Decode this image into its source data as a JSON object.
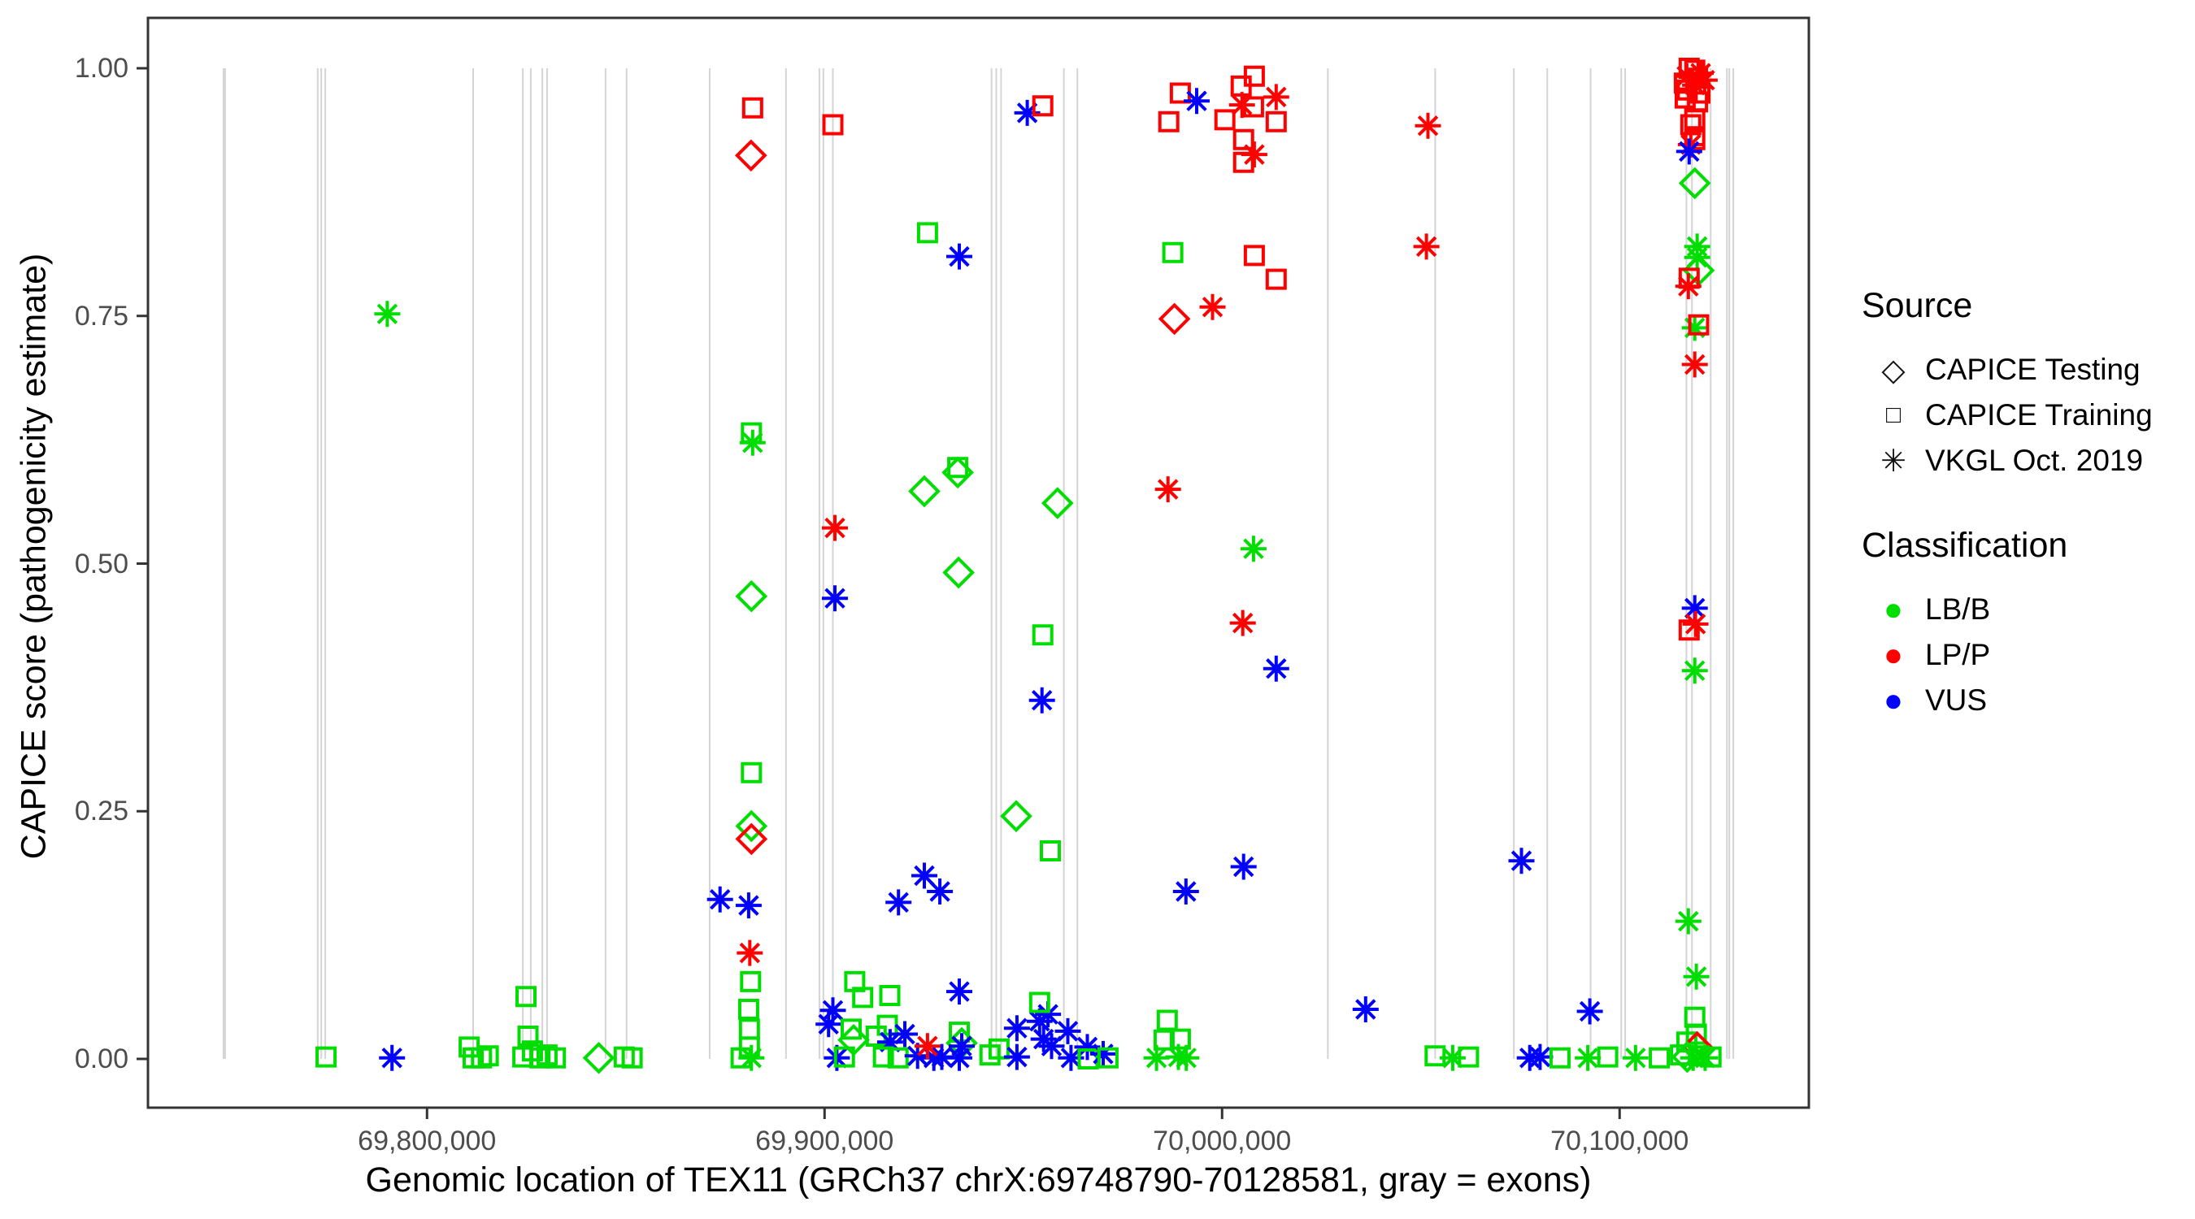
{
  "chart_data": {
    "type": "scatter",
    "title": "",
    "xlabel": "Genomic location of TEX11 (GRCh37 chrX:69748790-70128581, gray = exons)",
    "ylabel": "CAPICE score (pathogenicity estimate)",
    "x_range": [
      69729800,
      70147600
    ],
    "y_range": [
      0.0,
      1.0
    ],
    "grid": "off",
    "legend_position": "right",
    "x_ticks": [
      {
        "value": 69800000,
        "label": "69,800,000"
      },
      {
        "value": 69900000,
        "label": "69,900,000"
      },
      {
        "value": 70000000,
        "label": "70,000,000"
      },
      {
        "value": 70100000,
        "label": "70,100,000"
      }
    ],
    "y_ticks": [
      {
        "value": 1.0,
        "label": "1.00"
      },
      {
        "value": 0.75,
        "label": "0.75"
      },
      {
        "value": 0.5,
        "label": "0.50"
      },
      {
        "value": 0.25,
        "label": "0.25"
      },
      {
        "value": 0.0,
        "label": "0.00"
      }
    ],
    "legend": {
      "source_title": "Source",
      "source_items": [
        {
          "label": "CAPICE Testing",
          "marker": "diamond"
        },
        {
          "label": "CAPICE Training",
          "marker": "square"
        },
        {
          "label": "VKGL Oct. 2019",
          "marker": "asterisk"
        }
      ],
      "classification_title": "Classification",
      "classification_items": [
        {
          "label": "LB/B",
          "color": "#00DD00"
        },
        {
          "label": "LP/P",
          "color": "#FF0000"
        },
        {
          "label": "VUS",
          "color": "#0000FF"
        }
      ]
    },
    "colors": {
      "g": "#00DD00",
      "r": "#FF0000",
      "b": "#0000FF"
    },
    "shape_meaning": {
      "d": "CAPICE Testing (diamond)",
      "s": "CAPICE Training (square)",
      "a": "VKGL Oct. 2019 (asterisk)"
    },
    "exons_note": "gray vertical lines = exons (genomic positions)",
    "exons": [
      69748800,
      69749200,
      69772500,
      69773400,
      69774400,
      69811600,
      69824100,
      69826100,
      69829000,
      69830200,
      69844900,
      69850200,
      69871100,
      69890300,
      69898700,
      69899700,
      69902100,
      69942000,
      69943200,
      69944400,
      69960200,
      69963600,
      70026600,
      70053600,
      70073400,
      70081800,
      70092700,
      70100400,
      70101400,
      70116800,
      70118200,
      70122900,
      70127000,
      70127600,
      70128600
    ],
    "points_format": [
      "genomic_position",
      "capice_score",
      "shape(d=diamond,s=square,a=asterisk)",
      "class(g=LB/B,r=LP/P,b=VUS)"
    ],
    "points": [
      [
        69774600,
        0.002,
        "s",
        "g"
      ],
      [
        69790000,
        0.752,
        "a",
        "g"
      ],
      [
        69791200,
        0.001,
        "a",
        "b"
      ],
      [
        69810600,
        0.012,
        "s",
        "g"
      ],
      [
        69811600,
        0.001,
        "s",
        "g"
      ],
      [
        69813700,
        0.001,
        "s",
        "g"
      ],
      [
        69815400,
        0.003,
        "s",
        "g"
      ],
      [
        69824900,
        0.063,
        "s",
        "g"
      ],
      [
        69825400,
        0.023,
        "s",
        "g"
      ],
      [
        69824100,
        0.002,
        "s",
        "g"
      ],
      [
        69826500,
        0.008,
        "s",
        "g"
      ],
      [
        69828400,
        0.001,
        "s",
        "g"
      ],
      [
        69830200,
        0.004,
        "s",
        "g"
      ],
      [
        69832300,
        0.001,
        "s",
        "g"
      ],
      [
        69843200,
        0.001,
        "d",
        "g"
      ],
      [
        69849600,
        0.002,
        "s",
        "g"
      ],
      [
        69851600,
        0.001,
        "s",
        "g"
      ],
      [
        69873700,
        0.161,
        "a",
        "b"
      ],
      [
        69880900,
        0.155,
        "a",
        "b"
      ],
      [
        69881900,
        0.96,
        "s",
        "r"
      ],
      [
        69881500,
        0.912,
        "d",
        "r"
      ],
      [
        69881600,
        0.632,
        "s",
        "g"
      ],
      [
        69881900,
        0.622,
        "a",
        "g"
      ],
      [
        69881600,
        0.467,
        "d",
        "g"
      ],
      [
        69881600,
        0.289,
        "s",
        "g"
      ],
      [
        69881600,
        0.235,
        "d",
        "g"
      ],
      [
        69881600,
        0.222,
        "d",
        "r"
      ],
      [
        69881200,
        0.107,
        "a",
        "r"
      ],
      [
        69881400,
        0.078,
        "s",
        "g"
      ],
      [
        69880900,
        0.05,
        "s",
        "g"
      ],
      [
        69881100,
        0.03,
        "s",
        "g"
      ],
      [
        69881100,
        0.012,
        "s",
        "g"
      ],
      [
        69879000,
        0.001,
        "s",
        "g"
      ],
      [
        69881600,
        0.001,
        "a",
        "g"
      ],
      [
        69902100,
        0.943,
        "s",
        "r"
      ],
      [
        69902600,
        0.536,
        "a",
        "r"
      ],
      [
        69902600,
        0.465,
        "a",
        "b"
      ],
      [
        69902100,
        0.049,
        "a",
        "b"
      ],
      [
        69901000,
        0.035,
        "a",
        "b"
      ],
      [
        69903100,
        0.001,
        "a",
        "b"
      ],
      [
        69907600,
        0.078,
        "s",
        "g"
      ],
      [
        69909600,
        0.062,
        "s",
        "g"
      ],
      [
        69916400,
        0.064,
        "s",
        "g"
      ],
      [
        69915800,
        0.034,
        "s",
        "g"
      ],
      [
        69906700,
        0.03,
        "s",
        "g"
      ],
      [
        69907300,
        0.019,
        "d",
        "g"
      ],
      [
        69905000,
        0.002,
        "s",
        "g"
      ],
      [
        69913000,
        0.023,
        "s",
        "g"
      ],
      [
        69916500,
        0.017,
        "a",
        "b"
      ],
      [
        69920200,
        0.025,
        "a",
        "b"
      ],
      [
        69914800,
        0.002,
        "s",
        "g"
      ],
      [
        69918500,
        0.001,
        "s",
        "g"
      ],
      [
        69918600,
        0.158,
        "a",
        "b"
      ],
      [
        69923400,
        0.003,
        "a",
        "b"
      ],
      [
        69927500,
        0.001,
        "a",
        "b"
      ],
      [
        69929500,
        0.002,
        "a",
        "b"
      ],
      [
        69925900,
        0.013,
        "a",
        "r"
      ],
      [
        69925100,
        0.573,
        "d",
        "g"
      ],
      [
        69925900,
        0.834,
        "s",
        "g"
      ],
      [
        69933900,
        0.81,
        "a",
        "b"
      ],
      [
        69933500,
        0.592,
        "d",
        "g"
      ],
      [
        69933500,
        0.597,
        "s",
        "g"
      ],
      [
        69933700,
        0.491,
        "d",
        "g"
      ],
      [
        69925100,
        0.185,
        "a",
        "b"
      ],
      [
        69929000,
        0.169,
        "a",
        "b"
      ],
      [
        69933900,
        0.068,
        "a",
        "b"
      ],
      [
        69933900,
        0.027,
        "s",
        "g"
      ],
      [
        69934500,
        0.016,
        "d",
        "g"
      ],
      [
        69934500,
        0.013,
        "a",
        "b"
      ],
      [
        69933900,
        0.001,
        "a",
        "b"
      ],
      [
        69951000,
        0.955,
        "a",
        "b"
      ],
      [
        69954900,
        0.962,
        "s",
        "r"
      ],
      [
        69941600,
        0.004,
        "s",
        "g"
      ],
      [
        69943900,
        0.01,
        "s",
        "g"
      ],
      [
        69948400,
        0.031,
        "a",
        "b"
      ],
      [
        69948400,
        0.002,
        "a",
        "b"
      ],
      [
        69954100,
        0.038,
        "a",
        "b"
      ],
      [
        69956200,
        0.045,
        "a",
        "b"
      ],
      [
        69954100,
        0.057,
        "s",
        "g"
      ],
      [
        69955100,
        0.02,
        "a",
        "b"
      ],
      [
        69957100,
        0.013,
        "a",
        "b"
      ],
      [
        69961200,
        0.028,
        "a",
        "b"
      ],
      [
        69962000,
        0.001,
        "a",
        "b"
      ],
      [
        69966100,
        0.012,
        "a",
        "b"
      ],
      [
        69966300,
        0.0,
        "s",
        "g"
      ],
      [
        69970100,
        0.005,
        "a",
        "b"
      ],
      [
        69971300,
        0.001,
        "s",
        "g"
      ],
      [
        69958600,
        0.561,
        "d",
        "g"
      ],
      [
        69954900,
        0.428,
        "s",
        "g"
      ],
      [
        69954700,
        0.362,
        "a",
        "b"
      ],
      [
        69948200,
        0.245,
        "d",
        "g"
      ],
      [
        69956800,
        0.21,
        "s",
        "g"
      ],
      [
        69983500,
        0.001,
        "a",
        "g"
      ],
      [
        69989000,
        0.002,
        "a",
        "g"
      ],
      [
        69991000,
        0.001,
        "a",
        "g"
      ],
      [
        69986200,
        0.039,
        "s",
        "g"
      ],
      [
        69985400,
        0.019,
        "s",
        "g"
      ],
      [
        69989500,
        0.02,
        "s",
        "g"
      ],
      [
        69986400,
        0.575,
        "a",
        "r"
      ],
      [
        70007900,
        0.515,
        "a",
        "g"
      ],
      [
        70005200,
        0.44,
        "a",
        "r"
      ],
      [
        70013600,
        0.394,
        "a",
        "b"
      ],
      [
        70005400,
        0.194,
        "a",
        "b"
      ],
      [
        69990900,
        0.169,
        "a",
        "b"
      ],
      [
        69989500,
        0.975,
        "s",
        "r"
      ],
      [
        69993600,
        0.967,
        "a",
        "b"
      ],
      [
        69986600,
        0.946,
        "s",
        "r"
      ],
      [
        70004800,
        0.982,
        "s",
        "r"
      ],
      [
        70008100,
        0.992,
        "s",
        "r"
      ],
      [
        70000700,
        0.948,
        "s",
        "r"
      ],
      [
        70005000,
        0.963,
        "a",
        "r"
      ],
      [
        70007900,
        0.961,
        "s",
        "r"
      ],
      [
        70013600,
        0.971,
        "a",
        "r"
      ],
      [
        70013600,
        0.946,
        "s",
        "r"
      ],
      [
        70005400,
        0.928,
        "s",
        "r"
      ],
      [
        70008100,
        0.913,
        "a",
        "r"
      ],
      [
        70005400,
        0.905,
        "s",
        "r"
      ],
      [
        69987600,
        0.814,
        "s",
        "g"
      ],
      [
        70008100,
        0.811,
        "s",
        "r"
      ],
      [
        70013600,
        0.787,
        "s",
        "r"
      ],
      [
        69997600,
        0.759,
        "a",
        "r"
      ],
      [
        69988000,
        0.747,
        "d",
        "r"
      ],
      [
        70036100,
        0.05,
        "a",
        "b"
      ],
      [
        70051800,
        0.942,
        "a",
        "r"
      ],
      [
        70051400,
        0.82,
        "a",
        "r"
      ],
      [
        70075300,
        0.2,
        "a",
        "b"
      ],
      [
        70053600,
        0.003,
        "s",
        "g"
      ],
      [
        70058000,
        0.001,
        "a",
        "g"
      ],
      [
        70062000,
        0.002,
        "s",
        "g"
      ],
      [
        70077400,
        0.001,
        "a",
        "b"
      ],
      [
        70080000,
        0.002,
        "a",
        "b"
      ],
      [
        70085000,
        0.001,
        "s",
        "g"
      ],
      [
        70092000,
        0.001,
        "a",
        "g"
      ],
      [
        70092500,
        0.048,
        "a",
        "b"
      ],
      [
        70097000,
        0.002,
        "s",
        "g"
      ],
      [
        70104000,
        0.001,
        "a",
        "g"
      ],
      [
        70110000,
        0.001,
        "s",
        "g"
      ],
      [
        70117500,
        1.0,
        "s",
        "r"
      ],
      [
        70118900,
        0.998,
        "s",
        "r"
      ],
      [
        70120400,
        0.995,
        "a",
        "r"
      ],
      [
        70116900,
        0.992,
        "a",
        "r"
      ],
      [
        70119600,
        0.99,
        "s",
        "r"
      ],
      [
        70121400,
        0.988,
        "a",
        "r"
      ],
      [
        70116300,
        0.985,
        "s",
        "r"
      ],
      [
        70119000,
        0.983,
        "a",
        "r"
      ],
      [
        70117000,
        0.978,
        "s",
        "r"
      ],
      [
        70120200,
        0.975,
        "s",
        "r"
      ],
      [
        70116500,
        0.97,
        "s",
        "r"
      ],
      [
        70119600,
        0.966,
        "s",
        "r"
      ],
      [
        70118900,
        0.949,
        "s",
        "r"
      ],
      [
        70117900,
        0.943,
        "s",
        "r"
      ],
      [
        70118900,
        0.928,
        "s",
        "r"
      ],
      [
        70117900,
        0.923,
        "a",
        "r"
      ],
      [
        70117500,
        0.916,
        "a",
        "b"
      ],
      [
        70118900,
        0.884,
        "d",
        "g"
      ],
      [
        70119500,
        0.82,
        "a",
        "g"
      ],
      [
        70119500,
        0.809,
        "a",
        "g"
      ],
      [
        70119900,
        0.796,
        "d",
        "g"
      ],
      [
        70117500,
        0.788,
        "s",
        "r"
      ],
      [
        70117300,
        0.78,
        "a",
        "r"
      ],
      [
        70118900,
        0.738,
        "a",
        "g"
      ],
      [
        70119900,
        0.741,
        "s",
        "r"
      ],
      [
        70118900,
        0.701,
        "a",
        "r"
      ],
      [
        70118900,
        0.455,
        "a",
        "b"
      ],
      [
        70119100,
        0.439,
        "a",
        "r"
      ],
      [
        70117500,
        0.433,
        "s",
        "r"
      ],
      [
        70118900,
        0.392,
        "a",
        "g"
      ],
      [
        70117300,
        0.139,
        "a",
        "g"
      ],
      [
        70119300,
        0.083,
        "a",
        "g"
      ],
      [
        70118900,
        0.042,
        "s",
        "g"
      ],
      [
        70119300,
        0.025,
        "s",
        "g"
      ],
      [
        70116900,
        0.017,
        "s",
        "g"
      ],
      [
        70119500,
        0.012,
        "d",
        "r"
      ],
      [
        70115300,
        0.004,
        "s",
        "g"
      ],
      [
        70117000,
        0.002,
        "d",
        "g"
      ],
      [
        70118500,
        0.001,
        "a",
        "g"
      ],
      [
        70120000,
        0.003,
        "s",
        "g"
      ],
      [
        70121500,
        0.001,
        "a",
        "g"
      ],
      [
        70123000,
        0.002,
        "s",
        "g"
      ]
    ]
  }
}
